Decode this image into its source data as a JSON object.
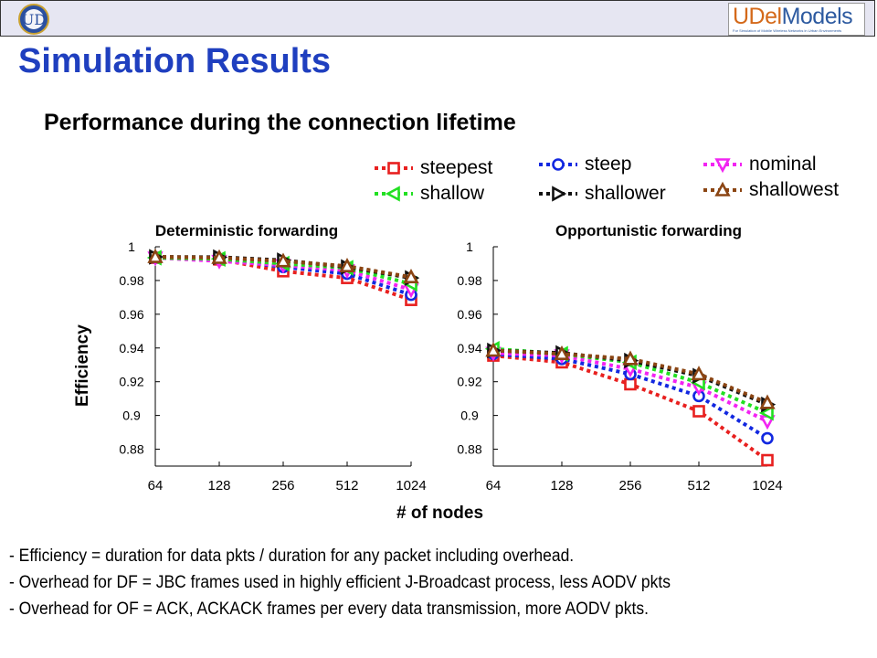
{
  "header": {
    "brand_main": "UDel",
    "brand_second": "Models",
    "brand_tagline": "For Simulation of Mobile Wireless Networks in Urban Environments"
  },
  "slide": {
    "title": "Simulation Results",
    "subtitle": "Performance during the connection lifetime",
    "notes": [
      "- Efficiency = duration for data pkts / duration for any packet including overhead.",
      "- Overhead for DF = JBC frames used in highly efficient J-Broadcast process, less AODV pkts",
      "- Overhead for OF = ACK, ACKACK frames per every data transmission, more AODV pkts."
    ]
  },
  "legend": [
    {
      "label": "steepest",
      "color": "#e8201f",
      "marker": "square"
    },
    {
      "label": "steep",
      "color": "#1228e0",
      "marker": "circle"
    },
    {
      "label": "nominal",
      "color": "#f224f2",
      "marker": "triangle-down"
    },
    {
      "label": "shallow",
      "color": "#22e022",
      "marker": "triangle-left"
    },
    {
      "label": "shallower",
      "color": "#111111",
      "marker": "triangle-right"
    },
    {
      "label": "shallowest",
      "color": "#8b4513",
      "marker": "triangle-up"
    }
  ],
  "chart_data": [
    {
      "type": "line",
      "title": "Deterministic forwarding",
      "ylabel": "Efficiency",
      "xlabel": "# of nodes",
      "x": [
        "64",
        "128",
        "256",
        "512",
        "1024"
      ],
      "ylim": [
        0.87,
        1.0
      ],
      "yticks": [
        "1",
        "0.98",
        "0.96",
        "0.94",
        "0.92",
        "0.9",
        "0.88"
      ],
      "series": [
        {
          "name": "steepest",
          "values": [
            0.9935,
            0.9925,
            0.9855,
            0.9815,
            0.9685
          ]
        },
        {
          "name": "steep",
          "values": [
            0.9935,
            0.9928,
            0.988,
            0.984,
            0.9715
          ]
        },
        {
          "name": "nominal",
          "values": [
            0.9935,
            0.9915,
            0.989,
            0.986,
            0.9745
          ]
        },
        {
          "name": "shallow",
          "values": [
            0.9935,
            0.9928,
            0.99,
            0.9875,
            0.978
          ]
        },
        {
          "name": "shallower",
          "values": [
            0.994,
            0.9938,
            0.992,
            0.988,
            0.9815
          ]
        },
        {
          "name": "shallowest",
          "values": [
            0.994,
            0.9935,
            0.9915,
            0.9885,
            0.982
          ]
        }
      ]
    },
    {
      "type": "line",
      "title": "Opportunistic forwarding",
      "x": [
        "64",
        "128",
        "256",
        "512",
        "1024"
      ],
      "ylim": [
        0.87,
        1.0
      ],
      "yticks": [
        "1",
        "0.98",
        "0.96",
        "0.94",
        "0.92",
        "0.9",
        "0.88"
      ],
      "series": [
        {
          "name": "steepest",
          "values": [
            0.9355,
            0.9315,
            0.9185,
            0.9025,
            0.8735
          ]
        },
        {
          "name": "steep",
          "values": [
            0.9365,
            0.9335,
            0.9245,
            0.9115,
            0.8865
          ]
        },
        {
          "name": "nominal",
          "values": [
            0.937,
            0.9355,
            0.9275,
            0.9165,
            0.8965
          ]
        },
        {
          "name": "shallow",
          "values": [
            0.9395,
            0.9365,
            0.9315,
            0.9195,
            0.9015
          ]
        },
        {
          "name": "shallower",
          "values": [
            0.9385,
            0.937,
            0.9325,
            0.9235,
            0.9065
          ]
        },
        {
          "name": "shallowest",
          "values": [
            0.9385,
            0.9365,
            0.9335,
            0.9245,
            0.9075
          ]
        }
      ]
    }
  ]
}
